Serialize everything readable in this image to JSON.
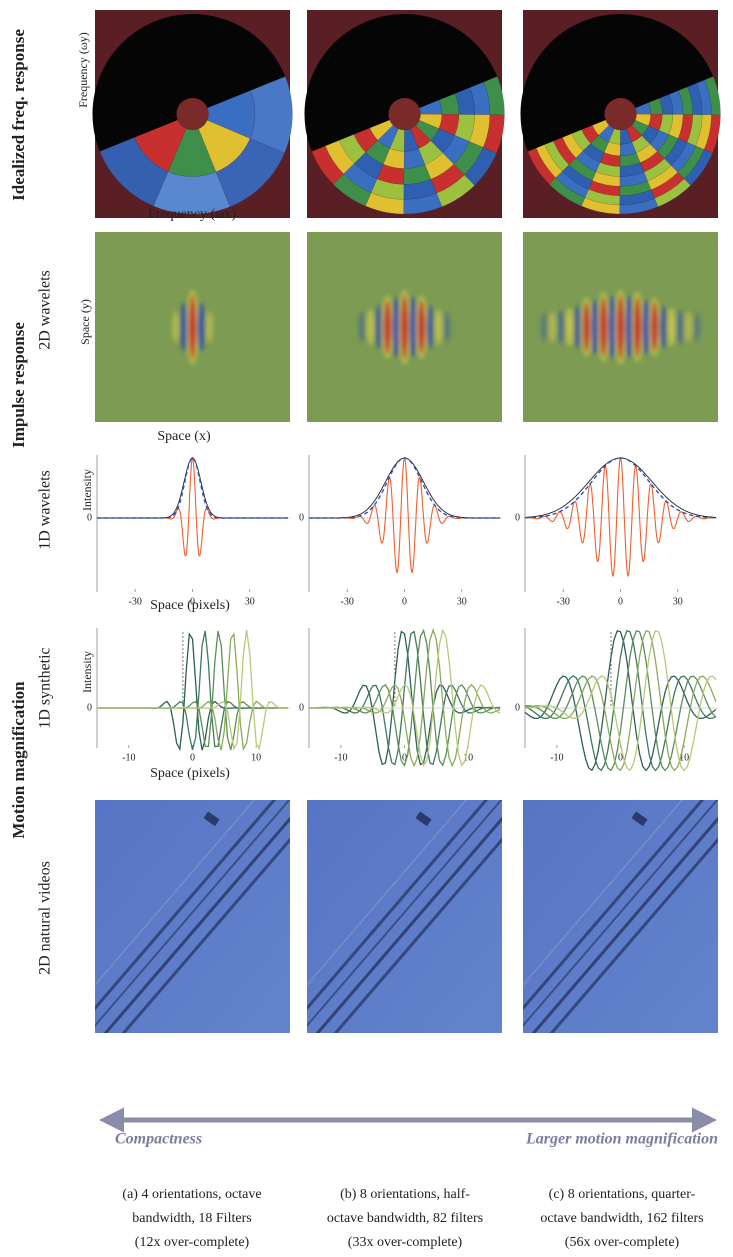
{
  "row_labels": [
    "Idealized freq. response",
    "Impulse response",
    "Motion magnification"
  ],
  "sub_labels": [
    "2D wavelets",
    "1D wavelets",
    "1D synthetic",
    "2D natural videos"
  ],
  "freq_axes": {
    "y": "Frequency (ωy)",
    "x": "Frequency (ωx)"
  },
  "wavelet_axes": {
    "y": "Space (y)",
    "x": "Space (x)"
  },
  "wavelets_1d": {
    "ylabel": "Intensity",
    "xlabel": "Space (pixels)",
    "xlim": [
      -50,
      50
    ],
    "xticks": [
      -30,
      0,
      30
    ],
    "yticks": [
      0
    ]
  },
  "synthetic_1d": {
    "ylabel": "Intensity",
    "xlabel": "Space (pixels)",
    "xlim": [
      -15,
      15
    ],
    "xticks": [
      -10,
      0,
      10
    ],
    "yticks": [
      0
    ]
  },
  "arrow": {
    "left": "Compactness",
    "right": "Larger motion magnification"
  },
  "captions": [
    [
      "(a) 4 orientations, octave",
      "bandwidth, 18 Filters",
      "(12x over-complete)"
    ],
    [
      "(b) 8 orientations, half-",
      "octave bandwidth, 82 filters",
      "(33x over-complete)"
    ],
    [
      "(c) 8 orientations, quarter-",
      "octave bandwidth, 162 filters",
      "(56x over-complete)"
    ]
  ]
}
